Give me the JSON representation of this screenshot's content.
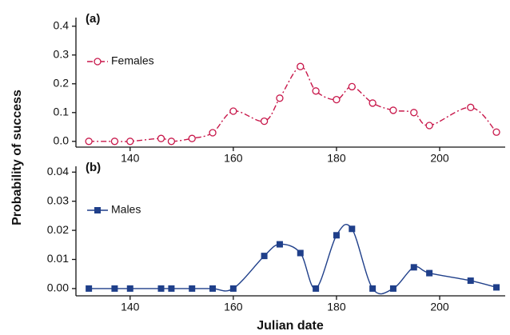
{
  "chart_data": [
    {
      "type": "line",
      "title": "(a)",
      "ylabel": "Probability of success",
      "x": [
        132,
        137,
        140,
        146,
        148,
        152,
        156,
        160,
        166,
        169,
        173,
        176,
        180,
        183,
        187,
        191,
        195,
        198,
        206,
        211
      ],
      "series": [
        {
          "name": "Females",
          "color": "#c8174a",
          "marker": "open-circle",
          "dash": "dashdot",
          "values": [
            0,
            0,
            0,
            0.01,
            0,
            0.01,
            0.03,
            0.105,
            0.07,
            0.15,
            0.26,
            0.175,
            0.145,
            0.19,
            0.133,
            0.108,
            0.1,
            0.055,
            0.118,
            0.032
          ]
        }
      ],
      "xlim": [
        129.5,
        212.7
      ],
      "ylim": [
        -0.02,
        0.43
      ],
      "xticks": [
        140,
        160,
        180,
        200
      ],
      "yticks": [
        {
          "value": 0,
          "label": "0.0"
        },
        0.1,
        0.2,
        0.3,
        0.4
      ],
      "legend": "upper-left"
    },
    {
      "type": "line",
      "title": "(b)",
      "xlabel": "Julian date",
      "x": [
        132,
        137,
        140,
        146,
        148,
        152,
        156,
        160,
        166,
        169,
        173,
        176,
        180,
        183,
        187,
        191,
        195,
        198,
        206,
        211
      ],
      "series": [
        {
          "name": "Males",
          "color": "#1f3f8a",
          "marker": "square",
          "dash": "solid",
          "values": [
            0,
            0,
            0,
            0,
            0,
            0,
            0,
            0,
            0.0112,
            0.0152,
            0.0122,
            0,
            0.0183,
            0.0205,
            0,
            0,
            0.0073,
            0.0053,
            0.0027,
            0.0004
          ]
        }
      ],
      "xlim": [
        129.5,
        212.7
      ],
      "ylim": [
        -0.0025,
        0.042
      ],
      "xticks": [
        140,
        160,
        180,
        200
      ],
      "yticks": [
        {
          "value": 0,
          "label": "0.00"
        },
        0.01,
        0.02,
        0.03,
        0.04
      ],
      "legend": "upper-left"
    }
  ]
}
